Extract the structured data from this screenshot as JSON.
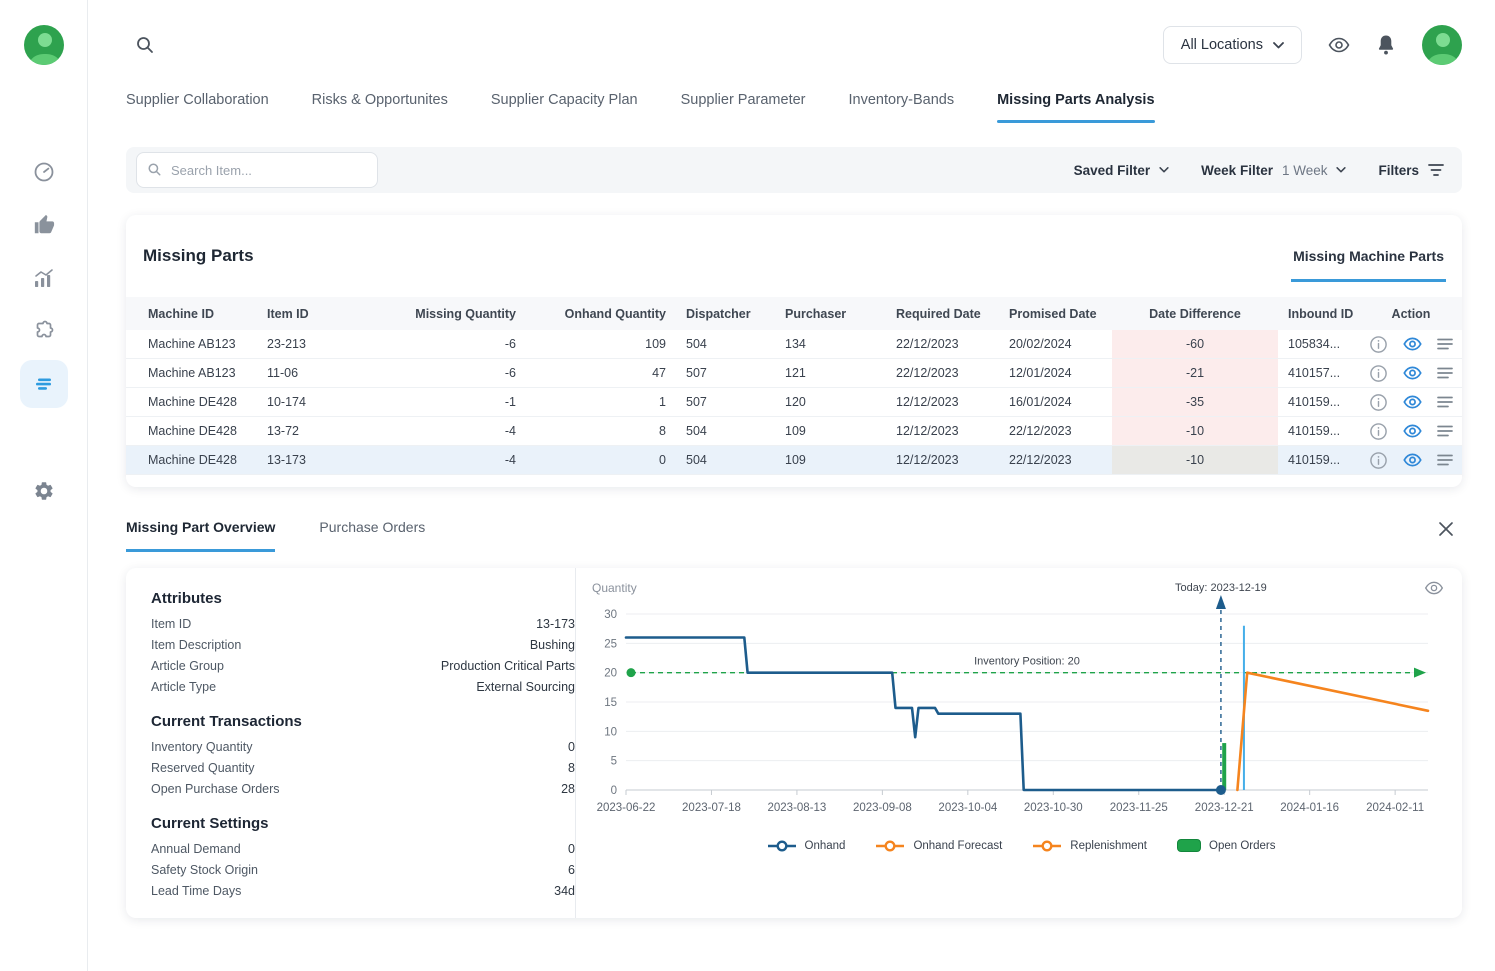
{
  "topbar": {
    "location_label": "All Locations"
  },
  "nav_tabs": {
    "items": [
      "Supplier Collaboration",
      "Risks & Opportunites",
      "Supplier Capacity Plan",
      "Supplier Parameter",
      "Inventory-Bands",
      "Missing Parts Analysis"
    ],
    "active": "Missing Parts Analysis"
  },
  "filter_bar": {
    "search_placeholder": "Search Item...",
    "saved_filter_label": "Saved Filter",
    "week_filter_label": "Week Filter",
    "week_filter_value": "1 Week",
    "filters_label": "Filters"
  },
  "missing_parts": {
    "title": "Missing Parts",
    "tab_label": "Missing Machine Parts",
    "columns": [
      "Machine ID",
      "Item ID",
      "Missing Quantity",
      "Onhand Quantity",
      "Dispatcher",
      "Purchaser",
      "Required Date",
      "Promised Date",
      "Date Difference",
      "Inbound ID",
      "Action"
    ],
    "rows": [
      {
        "machine_id": "Machine AB123",
        "item_id": "23-213",
        "missing_qty": "-6",
        "onhand_qty": "109",
        "dispatcher": "504",
        "purchaser": "134",
        "required_date": "22/12/2023",
        "promised_date": "20/02/2024",
        "date_diff": "-60",
        "inbound_id": "105834..."
      },
      {
        "machine_id": "Machine AB123",
        "item_id": "11-06",
        "missing_qty": "-6",
        "onhand_qty": "47",
        "dispatcher": "507",
        "purchaser": "121",
        "required_date": "22/12/2023",
        "promised_date": "12/01/2024",
        "date_diff": "-21",
        "inbound_id": "410157..."
      },
      {
        "machine_id": "Machine DE428",
        "item_id": "10-174",
        "missing_qty": "-1",
        "onhand_qty": "1",
        "dispatcher": "507",
        "purchaser": "120",
        "required_date": "12/12/2023",
        "promised_date": "16/01/2024",
        "date_diff": "-35",
        "inbound_id": "410159..."
      },
      {
        "machine_id": "Machine DE428",
        "item_id": "13-72",
        "missing_qty": "-4",
        "onhand_qty": "8",
        "dispatcher": "504",
        "purchaser": "109",
        "required_date": "12/12/2023",
        "promised_date": "22/12/2023",
        "date_diff": "-10",
        "inbound_id": "410159..."
      },
      {
        "machine_id": "Machine DE428",
        "item_id": "13-173",
        "missing_qty": "-4",
        "onhand_qty": "0",
        "dispatcher": "504",
        "purchaser": "109",
        "required_date": "12/12/2023",
        "promised_date": "22/12/2023",
        "date_diff": "-10",
        "inbound_id": "410159..."
      }
    ]
  },
  "detail_tabs": {
    "overview_label": "Missing Part Overview",
    "purchase_orders_label": "Purchase Orders",
    "active": "Missing Part Overview"
  },
  "detail_panel": {
    "sections": [
      {
        "heading": "Attributes",
        "rows": [
          {
            "label": "Item ID",
            "value": "13-173"
          },
          {
            "label": "Item Description",
            "value": "Bushing"
          },
          {
            "label": "Article Group",
            "value": "Production Critical Parts"
          },
          {
            "label": "Article Type",
            "value": "External Sourcing"
          }
        ]
      },
      {
        "heading": "Current Transactions",
        "rows": [
          {
            "label": "Inventory Quantity",
            "value": "0"
          },
          {
            "label": "Reserved Quantity",
            "value": "8"
          },
          {
            "label": "Open Purchase Orders",
            "value": "28"
          }
        ]
      },
      {
        "heading": "Current Settings",
        "rows": [
          {
            "label": "Annual Demand",
            "value": "0"
          },
          {
            "label": "Safety Stock Origin",
            "value": "6"
          },
          {
            "label": "Lead Time Days",
            "value": "34d"
          }
        ]
      }
    ]
  },
  "chart_data": {
    "type": "line",
    "ylabel": "Quantity",
    "ylim": [
      0,
      30
    ],
    "yticks": [
      0,
      5,
      10,
      15,
      20,
      25,
      30
    ],
    "grid": true,
    "legend_position": "bottom",
    "x_axis": {
      "domain_days": [
        0,
        244
      ],
      "tick_days": [
        0,
        26,
        52,
        78,
        104,
        130,
        156,
        182,
        208,
        234
      ],
      "tick_labels": [
        "2023-06-22",
        "2023-07-18",
        "2023-08-13",
        "2023-09-08",
        "2023-10-04",
        "2023-10-30",
        "2023-11-25",
        "2023-12-21",
        "2024-01-16",
        "2024-02-11"
      ]
    },
    "series": [
      {
        "name": "Onhand",
        "color": "#1d5c8c",
        "end_marker": true,
        "points": [
          [
            0,
            26
          ],
          [
            36,
            26
          ],
          [
            37,
            20
          ],
          [
            81,
            20
          ],
          [
            82,
            14
          ],
          [
            87,
            14
          ],
          [
            88,
            9
          ],
          [
            89,
            14
          ],
          [
            94,
            14
          ],
          [
            95,
            13
          ],
          [
            120,
            13
          ],
          [
            121,
            0
          ],
          [
            181,
            0
          ]
        ]
      },
      {
        "name": "Onhand Forecast",
        "color": "#f5841e",
        "end_marker": false,
        "points": [
          [
            186,
            0
          ],
          [
            189,
            20
          ],
          [
            244,
            13.5
          ]
        ]
      }
    ],
    "markers": {
      "today": {
        "label": "Today: 2023-12-19",
        "day": 181
      },
      "inventory_position": {
        "label": "Inventory Position: 20",
        "value": 20
      },
      "open_orders_bar": {
        "day": 182,
        "value": 8,
        "color": "#1fa34a"
      },
      "inbound_line": {
        "day": 188,
        "value": 28,
        "color": "#45aee9"
      }
    },
    "legend": [
      {
        "label": "Onhand",
        "color": "#1d5c8c",
        "type": "line"
      },
      {
        "label": "Onhand Forecast",
        "color": "#f5841e",
        "type": "line"
      },
      {
        "label": "Replenishment",
        "color": "#f5841e",
        "type": "line"
      },
      {
        "label": "Open Orders",
        "color": "#1fa34a",
        "type": "swatch"
      }
    ]
  }
}
